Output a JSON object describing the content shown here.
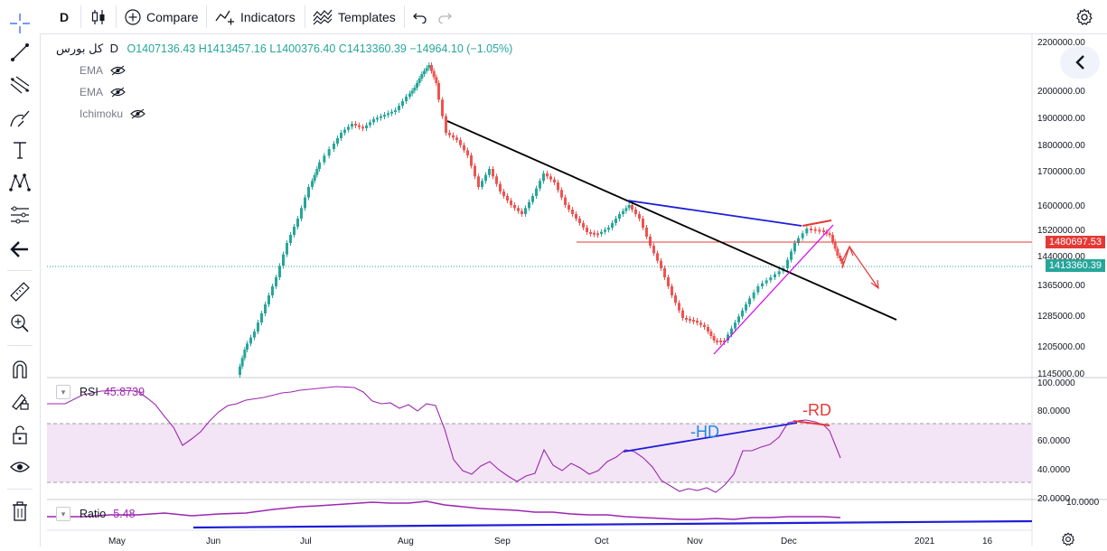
{
  "toolbar": {
    "interval": "D",
    "compare_label": "Compare",
    "indicators_label": "Indicators",
    "templates_label": "Templates"
  },
  "legend": {
    "symbol": "کل بورس",
    "interval": "D",
    "open": "O1407136.43",
    "high": "H1413457.16",
    "low": "L1400376.40",
    "close": "C1413360.39",
    "change": "−14964.10 (−1.05%)",
    "indicators": [
      "EMA",
      "EMA",
      "Ichimoku"
    ]
  },
  "price_axis": {
    "ticks": [
      "2200000.00",
      "2000000.00",
      "1900000.00",
      "1800000.00",
      "1700000.00",
      "1600000.00",
      "1520000.00",
      "1440000.00",
      "1365000.00",
      "1285000.00",
      "1205000.00",
      "1145000.00"
    ],
    "badge_red": "1480697.53",
    "badge_green": "1413360.39"
  },
  "rsi": {
    "label": "RSI",
    "value": "45.8739",
    "ticks": [
      "100.0000",
      "80.0000",
      "60.0000",
      "40.0000",
      "20.0000"
    ],
    "annotation_hd": "-HD",
    "annotation_rd": "-RD"
  },
  "ratio": {
    "label": "Ratio",
    "value": "5.48",
    "ticks": [
      "10.0000"
    ]
  },
  "time_axis": [
    "May",
    "Jun",
    "Jul",
    "Aug",
    "Sep",
    "Oct",
    "Nov",
    "Dec",
    "2021",
    "16"
  ],
  "colors": {
    "up": "#26a69a",
    "down": "#ef5350",
    "rsi": "#9c27b0",
    "trend_black": "#000000",
    "trend_blue": "#1e1ed8",
    "trend_red": "#e53935",
    "trend_magenta": "#d500f9"
  },
  "icons": [
    "crosshair-icon",
    "trend-line-icon",
    "fib-icon",
    "brush-icon",
    "text-icon",
    "pattern-icon",
    "forecast-icon",
    "back-arrow-icon",
    "ruler-icon",
    "zoom-icon",
    "magnet-icon",
    "lock-drawing-icon",
    "lock-icon",
    "eye-icon",
    "trash-icon",
    "settings-icon",
    "undo-icon",
    "redo-icon"
  ]
}
